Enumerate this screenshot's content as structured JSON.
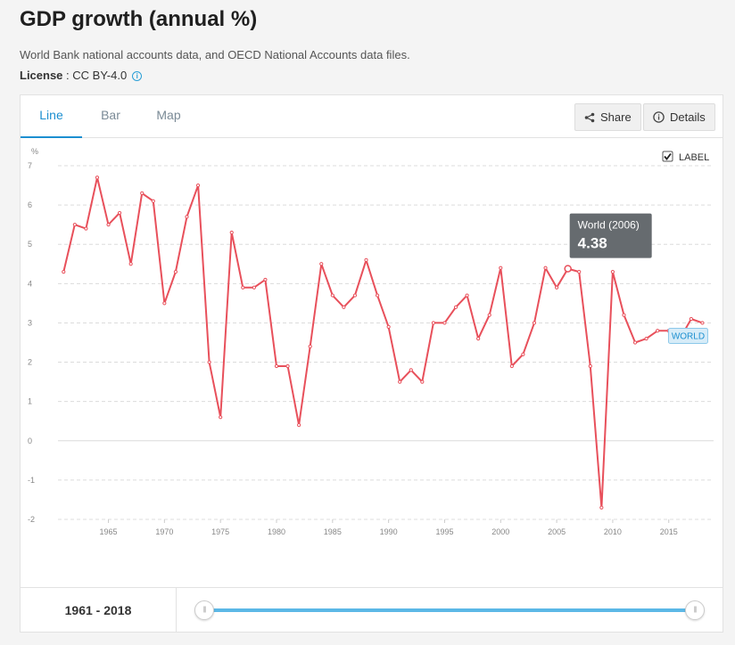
{
  "page": {
    "title": "GDP growth (annual %)",
    "source": "World Bank national accounts data, and OECD National Accounts data files.",
    "license_label": "License",
    "license_value": " : CC BY-4.0"
  },
  "tabs": [
    {
      "label": "Line",
      "active": true
    },
    {
      "label": "Bar",
      "active": false
    },
    {
      "label": "Map",
      "active": false
    }
  ],
  "buttons": {
    "share": "Share",
    "details": "Details"
  },
  "label_toggle": {
    "text": "LABEL",
    "checked": true
  },
  "tooltip": {
    "title": "World (2006)",
    "value": "4.38"
  },
  "range": {
    "text": "1961 - 2018"
  },
  "colors": {
    "line": "#e8505b",
    "accent": "#1c8fd0",
    "tooltip_bg": "#666b6f",
    "series_label_bg": "#d7ecf8"
  },
  "chart_data": {
    "type": "line",
    "ylabel": "%",
    "ylim": [
      -2,
      7
    ],
    "yticks": [
      -2,
      -1,
      0,
      1,
      2,
      3,
      4,
      5,
      6,
      7
    ],
    "xlim": [
      1960.5,
      2019
    ],
    "xticks": [
      1965,
      1970,
      1975,
      1980,
      1985,
      1990,
      1995,
      2000,
      2005,
      2010,
      2015
    ],
    "grid": true,
    "highlight": {
      "x": 2006,
      "y": 4.38
    },
    "series": [
      {
        "name": "WORLD",
        "x": [
          1961,
          1962,
          1963,
          1964,
          1965,
          1966,
          1967,
          1968,
          1969,
          1970,
          1971,
          1972,
          1973,
          1974,
          1975,
          1976,
          1977,
          1978,
          1979,
          1980,
          1981,
          1982,
          1983,
          1984,
          1985,
          1986,
          1987,
          1988,
          1989,
          1990,
          1991,
          1992,
          1993,
          1994,
          1995,
          1996,
          1997,
          1998,
          1999,
          2000,
          2001,
          2002,
          2003,
          2004,
          2005,
          2006,
          2007,
          2008,
          2009,
          2010,
          2011,
          2012,
          2013,
          2014,
          2015,
          2016,
          2017,
          2018
        ],
        "values": [
          4.3,
          5.5,
          5.4,
          6.7,
          5.5,
          5.8,
          4.5,
          6.3,
          6.1,
          3.5,
          4.3,
          5.7,
          6.5,
          2.0,
          0.6,
          5.3,
          3.9,
          3.9,
          4.1,
          1.9,
          1.9,
          0.4,
          2.4,
          4.5,
          3.7,
          3.4,
          3.7,
          4.6,
          3.7,
          2.9,
          1.5,
          1.8,
          1.5,
          3.0,
          3.0,
          3.4,
          3.7,
          2.6,
          3.2,
          4.4,
          1.9,
          2.2,
          3.0,
          4.4,
          3.9,
          4.38,
          4.3,
          1.9,
          -1.7,
          4.3,
          3.2,
          2.5,
          2.6,
          2.8,
          2.8,
          2.6,
          3.1,
          3.0
        ]
      }
    ]
  }
}
